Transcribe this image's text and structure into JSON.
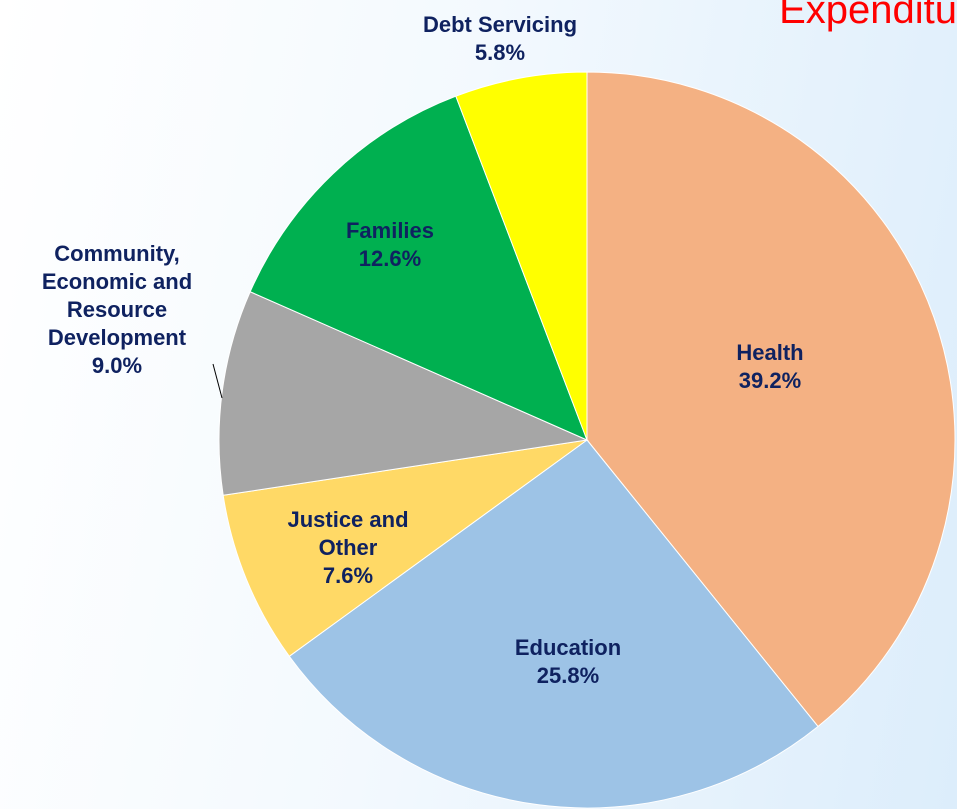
{
  "chart_data": {
    "type": "pie",
    "title": "Expenditu",
    "categories": [
      "Health",
      "Education",
      "Justice and Other",
      "Community, Economic and Resource Development",
      "Families",
      "Debt Servicing"
    ],
    "values": [
      39.2,
      25.8,
      7.6,
      9.0,
      12.6,
      5.8
    ],
    "value_labels": [
      "39.2%",
      "25.8%",
      "7.6%",
      "9.0%",
      "12.6%",
      "5.8%"
    ],
    "colors": [
      "#f4b183",
      "#9dc3e6",
      "#ffd966",
      "#a6a6a6",
      "#00b050",
      "#ffff00"
    ]
  }
}
